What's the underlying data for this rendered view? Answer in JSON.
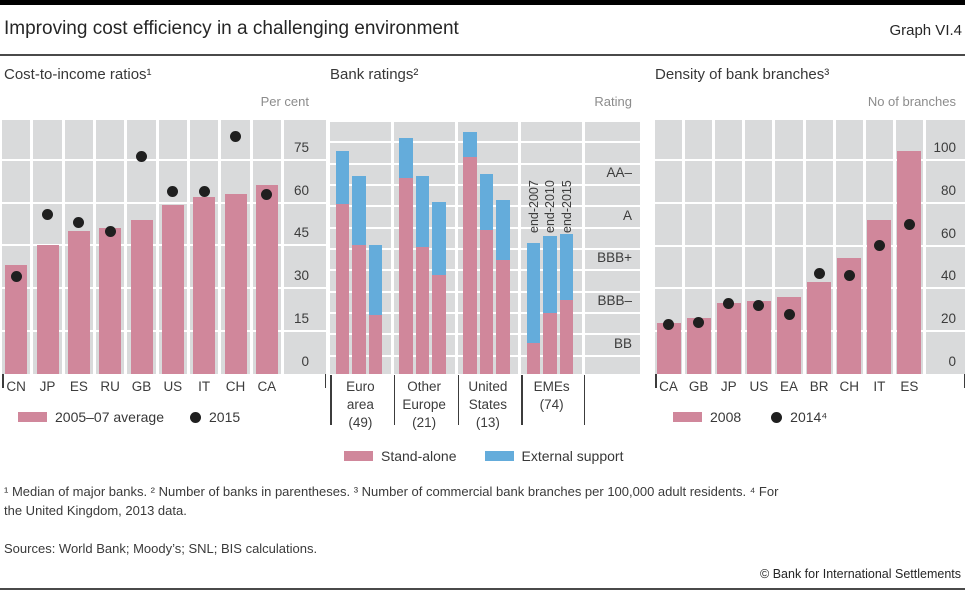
{
  "header": {
    "title": "Improving cost efficiency in a challenging environment",
    "graph_label": "Graph VI.4"
  },
  "colors": {
    "panel_bg": "#d9dadb",
    "grid": "#ffffff",
    "bar_pink": "#d0879b",
    "bar_blue": "#64acdb",
    "dot": "#1f1f1f",
    "text": "#3c3c3c",
    "muted": "#8c8c8c",
    "tick": "#3c3c3c"
  },
  "chart_data": [
    {
      "type": "bar",
      "title": "Cost-to-income ratios¹",
      "unit": "Per cent",
      "categories": [
        "CN",
        "JP",
        "ES",
        "RU",
        "GB",
        "US",
        "IT",
        "CH",
        "CA"
      ],
      "series": [
        {
          "name": "2005–07 average",
          "type": "bar",
          "color": "#d0879b",
          "values": [
            38,
            45,
            50,
            51,
            54,
            59,
            62,
            63,
            66
          ]
        },
        {
          "name": "2015",
          "type": "dot",
          "color": "#1f1f1f",
          "values": [
            34,
            56,
            53,
            50,
            76,
            64,
            64,
            83,
            63
          ]
        }
      ],
      "ylim": [
        0,
        88.9
      ],
      "yticks": [
        0,
        15,
        30,
        45,
        60,
        75
      ],
      "grid": true,
      "legend_position": "bottom"
    },
    {
      "type": "stacked-bar",
      "title": "Bank ratings²",
      "unit": "Rating",
      "scale_note": "rating notches above BB: BB=0, BBB–=2, BBB+=4, A=6, AA–=8",
      "groups": [
        "Euro area (49)",
        "Other Europe (21)",
        "United States (13)",
        "EMEs (74)"
      ],
      "group_label_lines": [
        [
          "Euro",
          "area",
          "(49)"
        ],
        [
          "Other",
          "Europe",
          "(21)"
        ],
        [
          "United",
          "States",
          "(13)"
        ],
        [
          "EMEs",
          "(74)"
        ]
      ],
      "bar_labels": [
        "end-2007",
        "end-2010",
        "end-2015"
      ],
      "series": [
        {
          "name": "Stand-alone",
          "color": "#d0879b",
          "values": [
            [
              7.1,
              5.2,
              1.9
            ],
            [
              8.3,
              5.1,
              3.8
            ],
            [
              9.3,
              5.9,
              4.5
            ],
            [
              0.6,
              2.0,
              2.6
            ]
          ]
        },
        {
          "name": "External support",
          "color": "#64acdb",
          "totals": [
            [
              9.6,
              8.4,
              5.2
            ],
            [
              10.2,
              8.4,
              7.2
            ],
            [
              10.5,
              8.5,
              7.3
            ],
            [
              5.3,
              5.6,
              5.7
            ]
          ]
        }
      ],
      "yticks": [
        {
          "label": "BB",
          "value": 0
        },
        {
          "label": "BBB–",
          "value": 2
        },
        {
          "label": "BBB+",
          "value": 4
        },
        {
          "label": "A",
          "value": 6
        },
        {
          "label": "AA–",
          "value": 8
        }
      ],
      "ylim": [
        -0.86,
        11.04
      ],
      "grid": true,
      "legend_position": "bottom"
    },
    {
      "type": "bar",
      "title": "Density of bank branches³",
      "unit": "No of branches",
      "categories": [
        "CA",
        "GB",
        "JP",
        "US",
        "EA",
        "BR",
        "CH",
        "IT",
        "ES"
      ],
      "series": [
        {
          "name": "2008",
          "type": "bar",
          "color": "#d0879b",
          "values": [
            24,
            26,
            33,
            34,
            36,
            43,
            54,
            72,
            104
          ]
        },
        {
          "name": "2014⁴",
          "type": "dot",
          "color": "#1f1f1f",
          "values": [
            23,
            24,
            33,
            32,
            28,
            47,
            46,
            60,
            70
          ]
        }
      ],
      "ylim": [
        0,
        118.7
      ],
      "yticks": [
        0,
        20,
        40,
        60,
        80,
        100
      ],
      "grid": true,
      "legend_position": "bottom"
    }
  ],
  "footnotes": [
    "¹  Median of major banks.    ²  Number of banks in parentheses.    ³  Number of commercial bank branches per 100,000 adult residents.    ⁴  For",
    "the United Kingdom, 2013 data."
  ],
  "sources": "Sources: World Bank; Moody’s; SNL; BIS calculations.",
  "copyright": "© Bank for International Settlements"
}
